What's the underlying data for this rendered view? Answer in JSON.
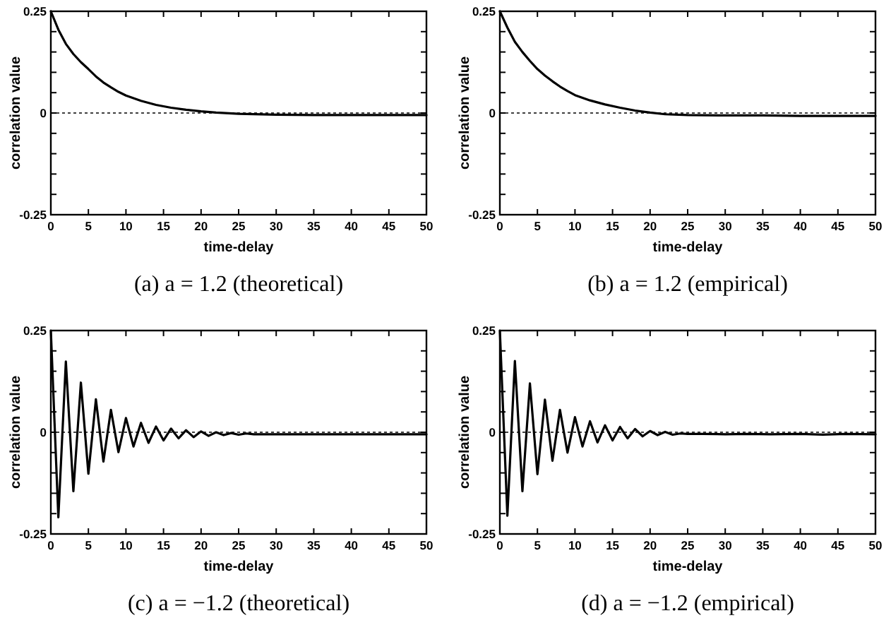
{
  "chart_data": [
    {
      "type": "line",
      "title": "(a) a = 1.2 (theoretical)",
      "xlabel": "time-delay",
      "ylabel": "correlation value",
      "xlim": [
        0,
        50
      ],
      "ylim": [
        -0.25,
        0.25
      ],
      "xticks": [
        0,
        5,
        10,
        15,
        20,
        25,
        30,
        35,
        40,
        45,
        50
      ],
      "yticks": [
        -0.25,
        {
          "value": -0.2,
          "label": null
        },
        {
          "value": -0.15,
          "label": null
        },
        {
          "value": -0.1,
          "label": null
        },
        {
          "value": -0.05,
          "label": null
        },
        0,
        {
          "value": 0.05,
          "label": null
        },
        {
          "value": 0.1,
          "label": null
        },
        {
          "value": 0.15,
          "label": null
        },
        {
          "value": 0.2,
          "label": null
        },
        0.25
      ],
      "ref_lines": [
        {
          "axis": "y",
          "value": 0,
          "line_style": "dotted"
        }
      ],
      "series": [
        {
          "color": "#000000",
          "x": [
            0,
            1,
            2,
            3,
            4,
            5,
            6,
            7,
            8,
            9,
            10,
            12,
            14,
            16,
            18,
            20,
            22,
            25,
            30,
            35,
            40,
            45,
            50
          ],
          "values": [
            0.25,
            0.205,
            0.17,
            0.145,
            0.125,
            0.108,
            0.09,
            0.075,
            0.063,
            0.052,
            0.043,
            0.03,
            0.02,
            0.013,
            0.008,
            0.004,
            0.001,
            -0.002,
            -0.004,
            -0.005,
            -0.005,
            -0.005,
            -0.005
          ]
        }
      ]
    },
    {
      "type": "line",
      "title": "(b) a = 1.2 (empirical)",
      "xlabel": "time-delay",
      "ylabel": "correlation value",
      "xlim": [
        0,
        50
      ],
      "ylim": [
        -0.25,
        0.25
      ],
      "xticks": [
        0,
        5,
        10,
        15,
        20,
        25,
        30,
        35,
        40,
        45,
        50
      ],
      "yticks": [
        -0.25,
        {
          "value": -0.2,
          "label": null
        },
        {
          "value": -0.15,
          "label": null
        },
        {
          "value": -0.1,
          "label": null
        },
        {
          "value": -0.05,
          "label": null
        },
        0,
        {
          "value": 0.05,
          "label": null
        },
        {
          "value": 0.1,
          "label": null
        },
        {
          "value": 0.15,
          "label": null
        },
        {
          "value": 0.2,
          "label": null
        },
        0.25
      ],
      "ref_lines": [
        {
          "axis": "y",
          "value": 0,
          "line_style": "dotted"
        }
      ],
      "series": [
        {
          "color": "#000000",
          "x": [
            0,
            1,
            2,
            3,
            4,
            5,
            6,
            7,
            8,
            9,
            10,
            12,
            14,
            16,
            18,
            20,
            22,
            25,
            30,
            35,
            40,
            45,
            50
          ],
          "values": [
            0.25,
            0.21,
            0.175,
            0.15,
            0.128,
            0.108,
            0.092,
            0.078,
            0.065,
            0.054,
            0.044,
            0.031,
            0.021,
            0.013,
            0.006,
            0.001,
            -0.003,
            -0.005,
            -0.006,
            -0.006,
            -0.007,
            -0.007,
            -0.007
          ]
        }
      ]
    },
    {
      "type": "line",
      "title": "(c) a = −1.2 (theoretical)",
      "xlabel": "time-delay",
      "ylabel": "correlation value",
      "xlim": [
        0,
        50
      ],
      "ylim": [
        -0.25,
        0.25
      ],
      "xticks": [
        0,
        5,
        10,
        15,
        20,
        25,
        30,
        35,
        40,
        45,
        50
      ],
      "yticks": [
        -0.25,
        {
          "value": -0.2,
          "label": null
        },
        {
          "value": -0.15,
          "label": null
        },
        {
          "value": -0.1,
          "label": null
        },
        {
          "value": -0.05,
          "label": null
        },
        0,
        {
          "value": 0.05,
          "label": null
        },
        {
          "value": 0.1,
          "label": null
        },
        {
          "value": 0.15,
          "label": null
        },
        {
          "value": 0.2,
          "label": null
        },
        0.25
      ],
      "ref_lines": [
        {
          "axis": "y",
          "value": 0,
          "line_style": "dotted"
        }
      ],
      "series": [
        {
          "color": "#000000",
          "x": [
            0,
            1,
            2,
            3,
            4,
            5,
            6,
            7,
            8,
            9,
            10,
            11,
            12,
            13,
            14,
            15,
            16,
            17,
            18,
            19,
            20,
            21,
            22,
            23,
            24,
            25,
            26,
            27,
            30,
            35,
            40,
            45,
            50
          ],
          "values": [
            0.25,
            -0.209,
            0.174,
            -0.145,
            0.122,
            -0.102,
            0.081,
            -0.072,
            0.055,
            -0.049,
            0.035,
            -0.035,
            0.023,
            -0.026,
            0.014,
            -0.02,
            0.009,
            -0.015,
            0.005,
            -0.012,
            0.002,
            -0.009,
            0.0,
            -0.007,
            -0.002,
            -0.006,
            -0.003,
            -0.005,
            -0.005,
            -0.005,
            -0.005,
            -0.005,
            -0.005
          ]
        }
      ]
    },
    {
      "type": "line",
      "title": "(d) a = −1.2 (empirical)",
      "xlabel": "time-delay",
      "ylabel": "correlation value",
      "xlim": [
        0,
        50
      ],
      "ylim": [
        -0.25,
        0.25
      ],
      "xticks": [
        0,
        5,
        10,
        15,
        20,
        25,
        30,
        35,
        40,
        45,
        50
      ],
      "yticks": [
        -0.25,
        {
          "value": -0.2,
          "label": null
        },
        {
          "value": -0.15,
          "label": null
        },
        {
          "value": -0.1,
          "label": null
        },
        {
          "value": -0.05,
          "label": null
        },
        0,
        {
          "value": 0.05,
          "label": null
        },
        {
          "value": 0.1,
          "label": null
        },
        {
          "value": 0.15,
          "label": null
        },
        {
          "value": 0.2,
          "label": null
        },
        0.25
      ],
      "ref_lines": [
        {
          "axis": "y",
          "value": 0,
          "line_style": "dotted"
        }
      ],
      "series": [
        {
          "color": "#000000",
          "x": [
            0,
            1,
            2,
            3,
            4,
            5,
            6,
            7,
            8,
            9,
            10,
            11,
            12,
            13,
            14,
            15,
            16,
            17,
            18,
            19,
            20,
            21,
            22,
            23,
            24,
            25,
            27,
            30,
            33,
            36,
            40,
            43,
            46,
            50
          ],
          "values": [
            0.25,
            -0.205,
            0.175,
            -0.145,
            0.12,
            -0.103,
            0.08,
            -0.07,
            0.055,
            -0.05,
            0.037,
            -0.035,
            0.027,
            -0.025,
            0.017,
            -0.02,
            0.013,
            -0.015,
            0.008,
            -0.01,
            0.003,
            -0.007,
            0.001,
            -0.006,
            -0.003,
            -0.004,
            -0.004,
            -0.005,
            -0.004,
            -0.005,
            -0.004,
            -0.006,
            -0.004,
            -0.005
          ]
        }
      ]
    }
  ]
}
